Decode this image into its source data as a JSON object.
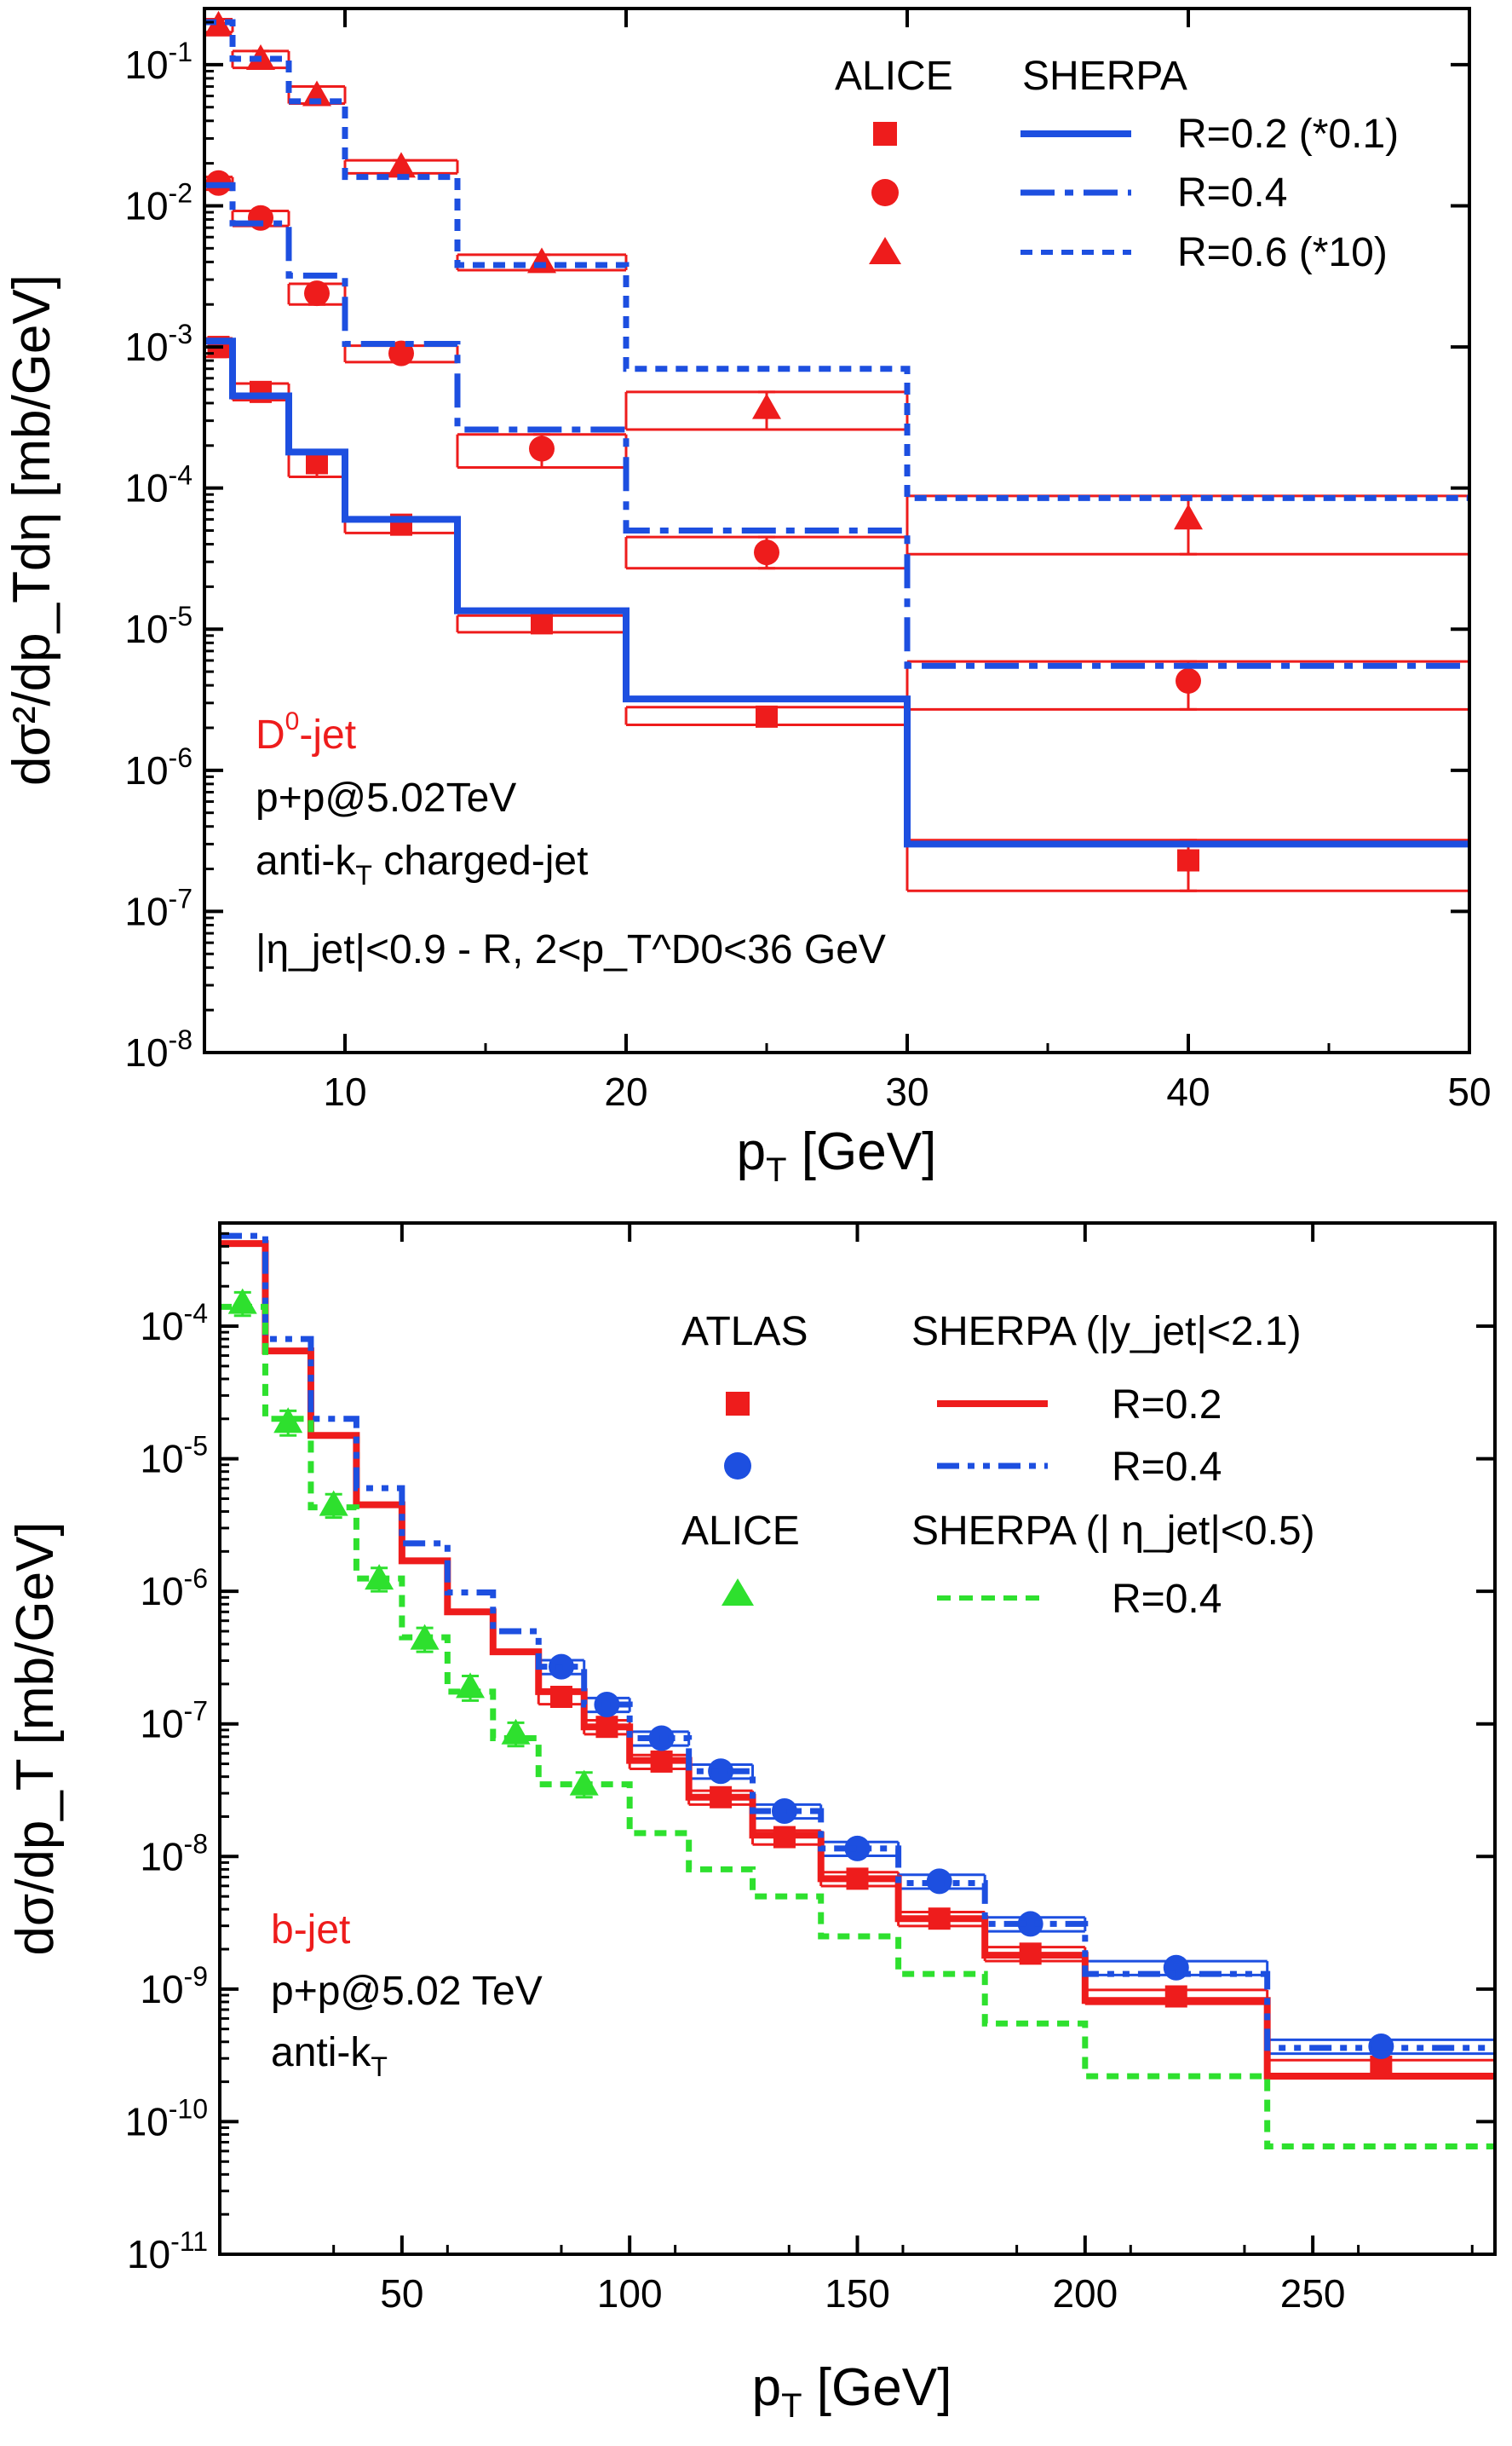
{
  "colors": {
    "alice_red": "#ee1c1c",
    "sherpa_blue": "#1d4fe0",
    "atlas_red": "#ee1c1c",
    "atlas_blue": "#1d4fe0",
    "alice_green": "#2ee02e",
    "axis": "#000000"
  },
  "chart_data": [
    {
      "type": "scatter",
      "panel": "top",
      "xlabel": "p",
      "xlabel_sub": "T",
      "xlabel_unit": " [GeV]",
      "ylabel": "dσ²/dp_Tdη [mb/GeV]",
      "log_y": true,
      "xlim": [
        5,
        50
      ],
      "ylim": [
        1e-08,
        0.25
      ],
      "x_ticks": [
        10,
        20,
        30,
        40,
        50
      ],
      "y_tick_exponents": [
        -1,
        -2,
        -3,
        -4,
        -5,
        -6,
        -7,
        -8
      ],
      "legend": {
        "placement": "top-right",
        "data_header": "ALICE",
        "model_header": "SHERPA",
        "entries": [
          {
            "marker": "square",
            "line": "solid",
            "label": "R=0.2 (*0.1)"
          },
          {
            "marker": "circle",
            "line": "dashdot",
            "label": "R=0.4"
          },
          {
            "marker": "triangle",
            "line": "dash",
            "label": "R=0.6 (*10)"
          }
        ]
      },
      "annotations": {
        "title": "D",
        "title_sup": "0",
        "title_rest": "-jet",
        "line1": "p+p@5.02TeV",
        "line2_a": "anti-k",
        "line2_sub": "T",
        "line2_b": " charged-jet",
        "line3": "|η_jet|<0.9 - R, 2<p_T^D0<36 GeV"
      },
      "bin_edges": [
        5,
        6,
        8,
        10,
        14,
        20,
        30,
        50
      ],
      "series": [
        {
          "name": "ALICE R=0.2 (*0.1)",
          "marker": "square",
          "x": [
            5.5,
            7,
            9,
            12,
            17,
            25,
            40
          ],
          "y": [
            0.001,
            0.00048,
            0.00015,
            5.5e-05,
            1.1e-05,
            2.4e-06,
            2.3e-07
          ],
          "err_lo": [
            0.00085,
            0.00042,
            0.00012,
            4.8e-05,
            9.5e-06,
            2.1e-06,
            1.4e-07
          ],
          "err_hi": [
            0.00115,
            0.00055,
            0.00018,
            6.2e-05,
            1.25e-05,
            2.8e-06,
            3.2e-07
          ]
        },
        {
          "name": "ALICE R=0.4",
          "marker": "circle",
          "x": [
            5.5,
            7,
            9,
            12,
            17,
            25,
            40
          ],
          "y": [
            0.0145,
            0.0082,
            0.0024,
            0.0009,
            0.00019,
            3.5e-05,
            4.3e-06
          ],
          "err_lo": [
            0.013,
            0.0072,
            0.002,
            0.00078,
            0.00014,
            2.7e-05,
            2.7e-06
          ],
          "err_hi": [
            0.016,
            0.0092,
            0.0028,
            0.00102,
            0.00024,
            4.5e-05,
            5.9e-06
          ]
        },
        {
          "name": "ALICE R=0.6 (*10)",
          "marker": "triangle",
          "x": [
            5.5,
            7,
            9,
            12,
            17,
            25,
            40
          ],
          "y": [
            0.19,
            0.11,
            0.061,
            0.019,
            0.004,
            0.00037,
            6.1e-05
          ],
          "err_lo": [
            0.17,
            0.095,
            0.053,
            0.017,
            0.0035,
            0.00026,
            3.4e-05
          ],
          "err_hi": [
            0.21,
            0.125,
            0.07,
            0.021,
            0.0045,
            0.00048,
            8.8e-05
          ]
        },
        {
          "name": "SHERPA R=0.2 (*0.1)",
          "line": "solid",
          "edges": [
            5,
            6,
            8,
            10,
            14,
            20,
            30,
            50
          ],
          "y": [
            0.0011,
            0.00045,
            0.00018,
            6e-05,
            1.35e-05,
            3.2e-06,
            3e-07
          ]
        },
        {
          "name": "SHERPA R=0.4",
          "line": "dashdot",
          "edges": [
            5,
            6,
            8,
            10,
            14,
            20,
            30,
            50
          ],
          "y": [
            0.014,
            0.0075,
            0.0032,
            0.00105,
            0.00026,
            5e-05,
            5.5e-06
          ]
        },
        {
          "name": "SHERPA R=0.6 (*10)",
          "line": "dash",
          "edges": [
            5,
            6,
            8,
            10,
            14,
            20,
            30,
            50
          ],
          "y": [
            0.2,
            0.11,
            0.055,
            0.016,
            0.0038,
            0.0007,
            8.5e-05
          ]
        }
      ]
    },
    {
      "type": "scatter",
      "panel": "bottom",
      "xlabel": "p",
      "xlabel_sub": "T",
      "xlabel_unit": " [GeV]",
      "ylabel": "dσ/dp_T [mb/GeV]",
      "log_y": true,
      "xlim": [
        10,
        290
      ],
      "ylim": [
        1e-11,
        0.0006
      ],
      "x_ticks": [
        50,
        100,
        150,
        200,
        250
      ],
      "y_tick_exponents": [
        -4,
        -5,
        -6,
        -7,
        -8,
        -9,
        -10,
        -11
      ],
      "legend": {
        "placement": "top-right",
        "atlas_header": "ATLAS",
        "sherpa_y_header": "SHERPA (|y_jet|<2.1)",
        "alice_header": "ALICE",
        "sherpa_eta_header": "SHERPA (| η_jet|<0.5)",
        "entries": [
          {
            "marker": "square",
            "line": "solid",
            "label": "R=0.2"
          },
          {
            "marker": "circle",
            "line": "dashdotdot",
            "label": "R=0.4"
          },
          {
            "marker": "triangle",
            "line": "dash",
            "label": "R=0.4"
          }
        ]
      },
      "annotations": {
        "title": "b-jet",
        "line1": "p+p@5.02 TeV",
        "line2_a": "anti-k",
        "line2_sub": "T"
      },
      "series": [
        {
          "name": "ATLAS R=0.2",
          "marker": "square",
          "x": [
            85,
            95,
            107,
            120,
            134,
            150,
            168,
            188,
            220,
            265
          ],
          "y": [
            1.6e-07,
            9.5e-08,
            5.2e-08,
            2.8e-08,
            1.4e-08,
            6.8e-09,
            3.4e-09,
            1.85e-09,
            8.8e-10,
            2.6e-10
          ],
          "x_lo": [
            80,
            90,
            100,
            113,
            127,
            142,
            159,
            178,
            200,
            240
          ],
          "x_hi": [
            90,
            100,
            113,
            127,
            142,
            159,
            178,
            200,
            240,
            290
          ]
        },
        {
          "name": "ATLAS R=0.4",
          "marker": "circle",
          "x": [
            85,
            95,
            107,
            120,
            134,
            150,
            168,
            188,
            220,
            265
          ],
          "y": [
            2.7e-07,
            1.4e-07,
            7.8e-08,
            4.4e-08,
            2.2e-08,
            1.15e-08,
            6.5e-09,
            3.1e-09,
            1.45e-09,
            3.7e-10
          ],
          "x_lo": [
            80,
            90,
            100,
            113,
            127,
            142,
            159,
            178,
            200,
            240
          ],
          "x_hi": [
            90,
            100,
            113,
            127,
            142,
            159,
            178,
            200,
            240,
            290
          ]
        },
        {
          "name": "ALICE R=0.4",
          "marker": "triangle",
          "x": [
            15,
            25,
            35,
            45,
            55,
            65,
            75,
            90
          ],
          "y": [
            0.00015,
            1.9e-05,
            4.5e-06,
            1.25e-06,
            4.4e-07,
            1.9e-07,
            8.5e-08,
            3.5e-08
          ],
          "err_lo": [
            0.00012,
            1.5e-05,
            3.6e-06,
            1e-06,
            3.5e-07,
            1.5e-07,
            6.8e-08,
            2.8e-08
          ],
          "err_hi": [
            0.00018,
            2.3e-05,
            5.4e-06,
            1.5e-06,
            5.3e-07,
            2.3e-07,
            1.02e-07,
            4.3e-08
          ]
        },
        {
          "name": "SHERPA R=0.2",
          "line": "solid",
          "edges": [
            10,
            20,
            30,
            40,
            50,
            60,
            70,
            80,
            90,
            100,
            113,
            127,
            142,
            159,
            178,
            200,
            240,
            290
          ],
          "y": [
            0.00042,
            6.5e-05,
            1.5e-05,
            4.5e-06,
            1.7e-06,
            7e-07,
            3.5e-07,
            1.75e-07,
            9.5e-08,
            5.3e-08,
            2.8e-08,
            1.45e-08,
            6.8e-09,
            3.4e-09,
            1.8e-09,
            8.2e-10,
            2.2e-10
          ]
        },
        {
          "name": "SHERPA R=0.4",
          "line": "dashdotdot",
          "edges": [
            10,
            20,
            30,
            40,
            50,
            60,
            70,
            80,
            90,
            100,
            113,
            127,
            142,
            159,
            178,
            200,
            240,
            290
          ],
          "y": [
            0.00048,
            8e-05,
            2e-05,
            6e-06,
            2.3e-06,
            9.8e-07,
            5e-07,
            2.7e-07,
            1.4e-07,
            7.8e-08,
            4.4e-08,
            2.2e-08,
            1.15e-08,
            6.3e-09,
            3.1e-09,
            1.3e-09,
            3.6e-10
          ]
        },
        {
          "name": "SHERPA R=0.4 (ALICE)",
          "line": "dash",
          "edges": [
            10,
            20,
            30,
            40,
            50,
            60,
            70,
            80,
            90,
            100,
            113,
            127,
            142,
            159,
            178,
            200,
            240,
            290
          ],
          "y": [
            0.00014,
            2e-05,
            4.3e-06,
            1.25e-06,
            4.5e-07,
            1.75e-07,
            7.8e-08,
            3.5e-08,
            3.5e-08,
            1.5e-08,
            8e-09,
            5e-09,
            2.5e-09,
            1.3e-09,
            5.5e-10,
            2.2e-10,
            6.5e-11
          ]
        }
      ]
    }
  ]
}
